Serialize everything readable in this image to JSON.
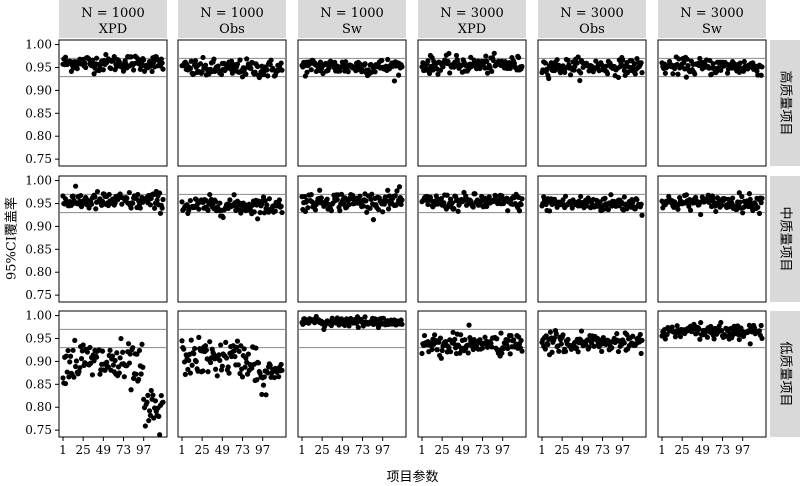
{
  "chart_data": {
    "type": "scatter",
    "xlabel": "项目参数",
    "ylabel": "95%CI覆盖率",
    "x_ticks": [
      1,
      25,
      49,
      73,
      97
    ],
    "y_ticks": [
      "1.00",
      "0.95",
      "0.90",
      "0.85",
      "0.80",
      "0.75"
    ],
    "xlim": [
      1,
      120
    ],
    "ylim": [
      0.735,
      1.01
    ],
    "reference_lines": [
      0.93,
      0.97
    ],
    "column_headers": [
      {
        "n": "N = 1000",
        "method": "XPD"
      },
      {
        "n": "N = 1000",
        "method": "Obs"
      },
      {
        "n": "N = 1000",
        "method": "Sw"
      },
      {
        "n": "N = 3000",
        "method": "XPD"
      },
      {
        "n": "N = 3000",
        "method": "Obs"
      },
      {
        "n": "N = 3000",
        "method": "Sw"
      }
    ],
    "row_headers": [
      "高质量项目",
      "中质量项目",
      "低质量项目"
    ],
    "n_items": 120,
    "panels": [
      [
        {
          "mean": 0.96,
          "spread": 0.009
        },
        {
          "mean": 0.947,
          "spread": 0.01
        },
        {
          "mean": 0.952,
          "spread": 0.009
        },
        {
          "mean": 0.956,
          "spread": 0.009
        },
        {
          "mean": 0.952,
          "spread": 0.009
        },
        {
          "mean": 0.952,
          "spread": 0.009
        }
      ],
      [
        {
          "mean": 0.955,
          "spread": 0.01
        },
        {
          "mean": 0.945,
          "spread": 0.01
        },
        {
          "mean": 0.955,
          "spread": 0.01
        },
        {
          "mean": 0.953,
          "spread": 0.009
        },
        {
          "mean": 0.95,
          "spread": 0.009
        },
        {
          "mean": 0.952,
          "spread": 0.009
        }
      ],
      [
        {
          "mean_start": 0.9,
          "mean_end": 0.79,
          "drop_at": 97,
          "spread": 0.025
        },
        {
          "mean_start": 0.908,
          "mean_end": 0.875,
          "drop_at": 90,
          "spread": 0.02
        },
        {
          "mean": 0.986,
          "spread": 0.005
        },
        {
          "mean": 0.937,
          "spread": 0.012
        },
        {
          "mean": 0.94,
          "spread": 0.011
        },
        {
          "mean": 0.965,
          "spread": 0.008
        }
      ]
    ]
  }
}
